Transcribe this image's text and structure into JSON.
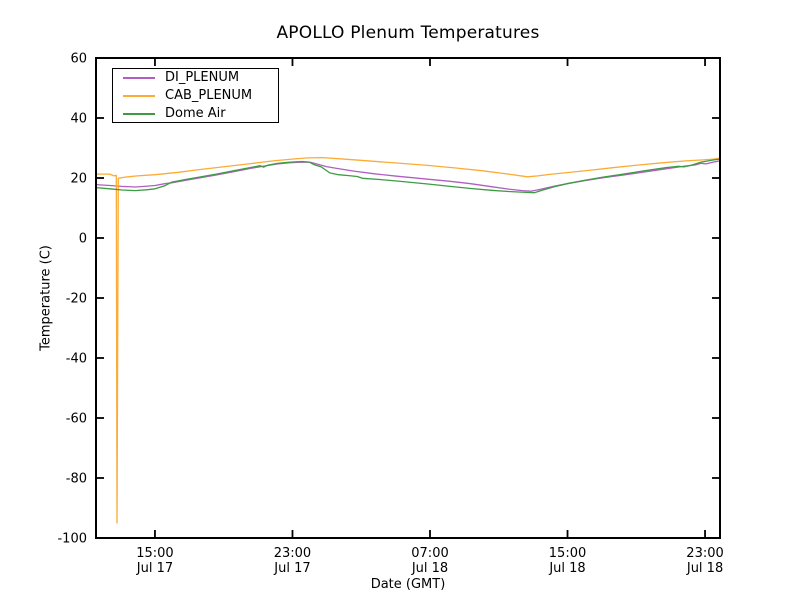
{
  "chart_data": {
    "type": "line",
    "title": "APOLLO Plenum Temperatures",
    "xlabel": "Date (GMT)",
    "ylabel": "Temperature (C)",
    "xlim": [
      0,
      36.3
    ],
    "ylim": [
      -100,
      60
    ],
    "grid": false,
    "legend_position": "upper left",
    "y_ticks": [
      60,
      40,
      20,
      0,
      -20,
      -40,
      -60,
      -80,
      -100
    ],
    "x_ticks": [
      {
        "pos": 3.43,
        "time": "15:00",
        "date": "Jul 17"
      },
      {
        "pos": 11.43,
        "time": "23:00",
        "date": "Jul 17"
      },
      {
        "pos": 19.43,
        "time": "07:00",
        "date": "Jul 18"
      },
      {
        "pos": 27.43,
        "time": "15:00",
        "date": "Jul 18"
      },
      {
        "pos": 35.43,
        "time": "23:00",
        "date": "Jul 18"
      }
    ],
    "x_unit": "hours from plot start (~11:30 Jul 17 GMT)",
    "series": [
      {
        "name": "DI_PLENUM",
        "color": "#b05fc0",
        "points": [
          [
            0,
            17.8
          ],
          [
            0.8,
            17.5
          ],
          [
            1.5,
            17.2
          ],
          [
            2.3,
            17.0
          ],
          [
            3.0,
            17.3
          ],
          [
            3.43,
            17.5
          ],
          [
            4.0,
            18.1
          ],
          [
            4.4,
            18.4
          ],
          [
            5.2,
            19.2
          ],
          [
            6.0,
            20.0
          ],
          [
            7.0,
            21.0
          ],
          [
            8.0,
            22.1
          ],
          [
            9.0,
            23.2
          ],
          [
            9.8,
            24.0
          ],
          [
            10.6,
            24.7
          ],
          [
            11.3,
            25.1
          ],
          [
            12.0,
            25.3
          ],
          [
            12.5,
            25.2
          ],
          [
            12.9,
            24.6
          ],
          [
            13.4,
            23.8
          ],
          [
            14.0,
            23.2
          ],
          [
            15.0,
            22.3
          ],
          [
            16.2,
            21.4
          ],
          [
            17.5,
            20.6
          ],
          [
            19.3,
            19.6
          ],
          [
            20.6,
            18.9
          ],
          [
            21.8,
            18.1
          ],
          [
            23.0,
            17.1
          ],
          [
            24.0,
            16.3
          ],
          [
            24.8,
            15.8
          ],
          [
            25.3,
            15.6
          ],
          [
            25.9,
            16.3
          ],
          [
            26.6,
            17.2
          ],
          [
            27.4,
            18.1
          ],
          [
            28.4,
            19.1
          ],
          [
            29.5,
            20.1
          ],
          [
            30.8,
            21.1
          ],
          [
            32.0,
            22.1
          ],
          [
            33.2,
            23.1
          ],
          [
            34.3,
            24.0
          ],
          [
            34.9,
            24.4
          ],
          [
            35.2,
            24.9
          ],
          [
            35.5,
            24.7
          ],
          [
            35.9,
            25.3
          ],
          [
            36.3,
            25.7
          ]
        ]
      },
      {
        "name": "CAB_PLENUM",
        "color": "#fbab36",
        "points": [
          [
            0,
            21.3
          ],
          [
            0.8,
            21.3
          ],
          [
            1.05,
            20.7
          ],
          [
            1.18,
            20.9
          ],
          [
            1.22,
            -95
          ],
          [
            1.3,
            19.9
          ],
          [
            1.7,
            20.3
          ],
          [
            2.4,
            20.7
          ],
          [
            3.43,
            21.1
          ],
          [
            4.8,
            21.9
          ],
          [
            6.0,
            22.8
          ],
          [
            7.5,
            23.8
          ],
          [
            9.0,
            24.8
          ],
          [
            10.3,
            25.7
          ],
          [
            11.4,
            26.3
          ],
          [
            12.3,
            26.7
          ],
          [
            13.2,
            26.8
          ],
          [
            14.2,
            26.4
          ],
          [
            15.4,
            25.9
          ],
          [
            17.0,
            25.2
          ],
          [
            19.3,
            24.2
          ],
          [
            21.0,
            23.3
          ],
          [
            22.5,
            22.4
          ],
          [
            24.0,
            21.3
          ],
          [
            25.1,
            20.4
          ],
          [
            25.7,
            20.7
          ],
          [
            26.4,
            21.2
          ],
          [
            27.4,
            21.8
          ],
          [
            28.6,
            22.5
          ],
          [
            30.0,
            23.4
          ],
          [
            31.5,
            24.3
          ],
          [
            33.0,
            25.1
          ],
          [
            34.3,
            25.7
          ],
          [
            35.2,
            26.0
          ],
          [
            35.9,
            26.3
          ],
          [
            36.3,
            26.6
          ]
        ]
      },
      {
        "name": "Dome Air",
        "color": "#3e9b44",
        "points": [
          [
            0,
            16.8
          ],
          [
            0.8,
            16.4
          ],
          [
            1.5,
            16.0
          ],
          [
            2.3,
            15.8
          ],
          [
            3.0,
            16.1
          ],
          [
            3.43,
            16.4
          ],
          [
            4.0,
            17.4
          ],
          [
            4.4,
            18.6
          ],
          [
            5.2,
            19.5
          ],
          [
            6.0,
            20.3
          ],
          [
            7.0,
            21.3
          ],
          [
            8.0,
            22.4
          ],
          [
            9.0,
            23.5
          ],
          [
            9.55,
            24.1
          ],
          [
            9.75,
            23.6
          ],
          [
            10.0,
            24.3
          ],
          [
            10.6,
            24.9
          ],
          [
            11.3,
            25.3
          ],
          [
            12.0,
            25.5
          ],
          [
            12.4,
            25.3
          ],
          [
            12.7,
            24.4
          ],
          [
            13.1,
            23.7
          ],
          [
            13.6,
            21.7
          ],
          [
            14.1,
            21.1
          ],
          [
            14.7,
            20.8
          ],
          [
            15.2,
            20.5
          ],
          [
            15.5,
            19.9
          ],
          [
            16.5,
            19.5
          ],
          [
            17.5,
            19.0
          ],
          [
            19.3,
            18.0
          ],
          [
            20.6,
            17.2
          ],
          [
            21.8,
            16.5
          ],
          [
            23.0,
            15.9
          ],
          [
            24.0,
            15.5
          ],
          [
            25.0,
            15.2
          ],
          [
            25.5,
            15.1
          ],
          [
            26.0,
            16.0
          ],
          [
            26.6,
            17.0
          ],
          [
            27.4,
            18.1
          ],
          [
            28.4,
            19.2
          ],
          [
            29.5,
            20.3
          ],
          [
            30.8,
            21.4
          ],
          [
            32.0,
            22.5
          ],
          [
            33.2,
            23.5
          ],
          [
            33.9,
            23.9
          ],
          [
            34.2,
            23.7
          ],
          [
            34.6,
            24.2
          ],
          [
            35.2,
            25.3
          ],
          [
            35.9,
            26.0
          ],
          [
            36.3,
            26.3
          ]
        ]
      }
    ]
  },
  "style": {
    "frame_color": "#000000",
    "background": "#ffffff"
  }
}
